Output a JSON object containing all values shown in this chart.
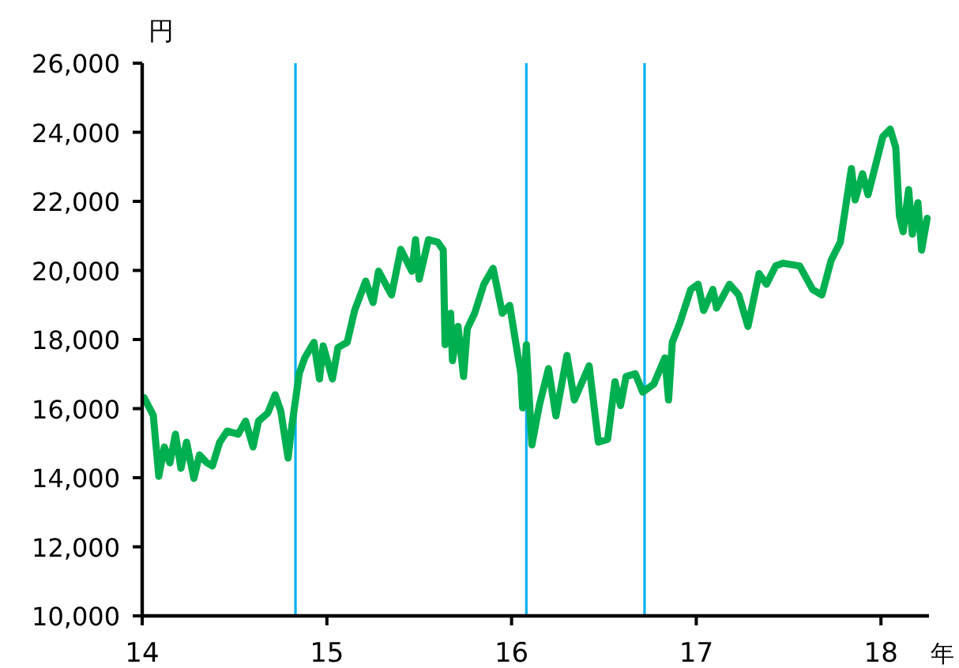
{
  "chart_data": {
    "type": "line",
    "xlabel": "年",
    "ylabel": "円",
    "xlim": [
      14,
      18.26
    ],
    "ylim": [
      10000,
      26000
    ],
    "xticks": [
      14,
      15,
      16,
      17,
      18
    ],
    "yticks": [
      {
        "value": 10000,
        "label": "10,000"
      },
      {
        "value": 12000,
        "label": "12,000"
      },
      {
        "value": 14000,
        "label": "14,000"
      },
      {
        "value": 16000,
        "label": "16,000"
      },
      {
        "value": 18000,
        "label": "18,000"
      },
      {
        "value": 20000,
        "label": "20,000"
      },
      {
        "value": 22000,
        "label": "22,000"
      },
      {
        "value": 24000,
        "label": "24,000"
      },
      {
        "value": 26000,
        "label": "26,000"
      }
    ],
    "grid": false,
    "ref_lines": [
      {
        "axis": "x",
        "value": 14.83,
        "color": "#00b0f0"
      },
      {
        "axis": "x",
        "value": 16.08,
        "color": "#00b0f0"
      },
      {
        "axis": "x",
        "value": 16.72,
        "color": "#00b0f0"
      }
    ],
    "x": [
      14.01,
      14.06,
      14.09,
      14.12,
      14.15,
      14.18,
      14.21,
      14.24,
      14.28,
      14.31,
      14.35,
      14.38,
      14.42,
      14.46,
      14.52,
      14.56,
      14.6,
      14.63,
      14.68,
      14.72,
      14.75,
      14.79,
      14.81,
      14.85,
      14.88,
      14.93,
      14.96,
      14.98,
      15.03,
      15.06,
      15.11,
      15.15,
      15.21,
      15.25,
      15.28,
      15.35,
      15.4,
      15.46,
      15.48,
      15.5,
      15.55,
      15.6,
      15.63,
      15.64,
      15.67,
      15.68,
      15.71,
      15.74,
      15.76,
      15.8,
      15.85,
      15.9,
      15.95,
      15.99,
      16.05,
      16.06,
      16.08,
      16.11,
      16.15,
      16.2,
      16.24,
      16.3,
      16.34,
      16.42,
      16.47,
      16.52,
      16.56,
      16.59,
      16.62,
      16.67,
      16.71,
      16.77,
      16.83,
      16.85,
      16.87,
      16.91,
      16.97,
      17.01,
      17.04,
      17.09,
      17.11,
      17.18,
      17.23,
      17.28,
      17.34,
      17.38,
      17.43,
      17.47,
      17.56,
      17.63,
      17.68,
      17.73,
      17.78,
      17.84,
      17.86,
      17.9,
      17.93,
      17.97,
      18.01,
      18.05,
      18.08,
      18.1,
      18.12,
      18.15,
      18.17,
      18.2,
      18.22,
      18.25
    ],
    "series": [
      {
        "color": "#00b050",
        "values": [
          16320,
          15810,
          14040,
          14890,
          14430,
          15260,
          14270,
          15030,
          13980,
          14660,
          14430,
          14340,
          15030,
          15350,
          15260,
          15640,
          14890,
          15640,
          15870,
          16400,
          15940,
          14570,
          15490,
          17010,
          17470,
          17920,
          16860,
          17820,
          16860,
          17770,
          17920,
          18840,
          19690,
          19070,
          19980,
          19290,
          20610,
          19980,
          20890,
          19750,
          20890,
          20820,
          20590,
          17850,
          18760,
          17390,
          18380,
          16930,
          18310,
          18760,
          19600,
          20060,
          18760,
          18990,
          17010,
          16020,
          17850,
          14950,
          16090,
          17160,
          15790,
          17540,
          16250,
          17240,
          15030,
          15110,
          16780,
          16090,
          16930,
          17010,
          16480,
          16710,
          17470,
          16250,
          17920,
          18460,
          19450,
          19600,
          18840,
          19450,
          18910,
          19600,
          19290,
          18380,
          19910,
          19600,
          20130,
          20210,
          20130,
          19450,
          19290,
          20290,
          20820,
          22950,
          22040,
          22800,
          22190,
          23030,
          23870,
          24090,
          23560,
          21580,
          21120,
          22340,
          21050,
          21960,
          20590,
          21510
        ]
      }
    ]
  }
}
